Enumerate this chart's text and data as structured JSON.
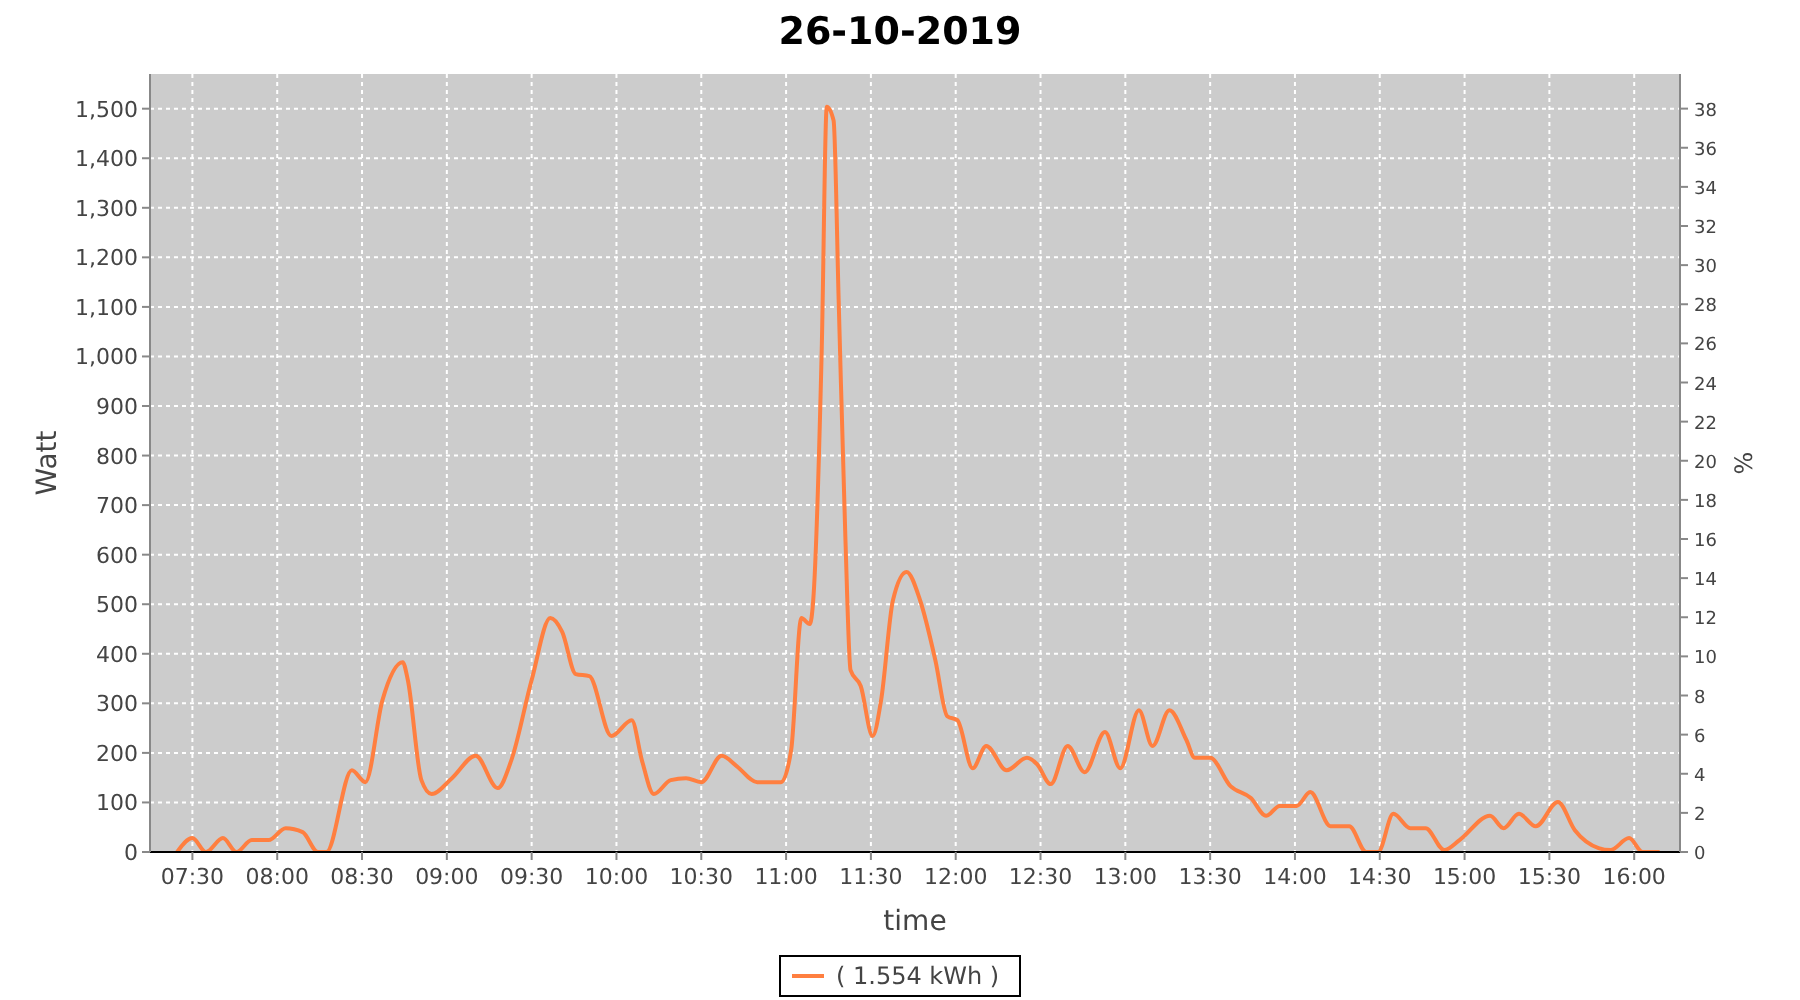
{
  "chart_data": {
    "type": "line",
    "title": "26-10-2019",
    "xlabel": "time",
    "ylabel": "Watt",
    "y2label": "%",
    "xlim": [
      7.25,
      16.27
    ],
    "xticks": [
      {
        "value": 7.5,
        "label": "07:30"
      },
      {
        "value": 8,
        "label": "08:00"
      },
      {
        "value": 8.5,
        "label": "08:30"
      },
      {
        "value": 9,
        "label": "09:00"
      },
      {
        "value": 9.5,
        "label": "09:30"
      },
      {
        "value": 10,
        "label": "10:00"
      },
      {
        "value": 10.5,
        "label": "10:30"
      },
      {
        "value": 11,
        "label": "11:00"
      },
      {
        "value": 11.5,
        "label": "11:30"
      },
      {
        "value": 12,
        "label": "12:00"
      },
      {
        "value": 12.5,
        "label": "12:30"
      },
      {
        "value": 13,
        "label": "13:00"
      },
      {
        "value": 13.5,
        "label": "13:30"
      },
      {
        "value": 14,
        "label": "14:00"
      },
      {
        "value": 14.5,
        "label": "14:30"
      },
      {
        "value": 15,
        "label": "15:00"
      },
      {
        "value": 15.5,
        "label": "15:30"
      },
      {
        "value": 16,
        "label": "16:00"
      }
    ],
    "ylim": [
      0,
      1570
    ],
    "yticks": [
      0,
      100,
      200,
      300,
      400,
      500,
      600,
      700,
      800,
      900,
      {
        "value": 1000,
        "label": "1,000"
      },
      {
        "value": 1100,
        "label": "1,100"
      },
      {
        "value": 1200,
        "label": "1,200"
      },
      {
        "value": 1300,
        "label": "1,300"
      },
      {
        "value": 1400,
        "label": "1,400"
      },
      {
        "value": 1500,
        "label": "1,500"
      }
    ],
    "y2lim": [
      0,
      39.77
    ],
    "y2ticks": [
      0,
      2,
      4,
      6,
      8,
      10,
      12,
      14,
      16,
      18,
      20,
      22,
      24,
      26,
      28,
      30,
      32,
      34,
      36,
      38
    ],
    "grid": true,
    "legend": "bottom",
    "marker": "none",
    "line_style": "solid",
    "series": [
      {
        "name": "( 1.554 kWh )",
        "color": "#ff7f40",
        "x": [
          7.41,
          7.5,
          7.58,
          7.68,
          7.76,
          7.85,
          7.95,
          8.05,
          8.15,
          8.24,
          8.29,
          8.44,
          8.52,
          8.62,
          8.74,
          8.77,
          8.85,
          8.91,
          9.03,
          9.17,
          9.3,
          9.38,
          9.5,
          9.61,
          9.68,
          9.76,
          9.84,
          9.97,
          10.09,
          10.15,
          10.22,
          10.32,
          10.41,
          10.5,
          10.62,
          10.71,
          10.83,
          10.97,
          11.03,
          11.09,
          11.14,
          11.16,
          11.21,
          11.24,
          11.28,
          11.31,
          11.35,
          11.38,
          11.44,
          11.51,
          11.56,
          11.63,
          11.71,
          11.79,
          11.88,
          11.95,
          12.01,
          12.1,
          12.18,
          12.3,
          12.42,
          12.48,
          12.56,
          12.66,
          12.76,
          12.88,
          12.97,
          13.08,
          13.16,
          13.26,
          13.36,
          13.41,
          13.5,
          13.62,
          13.74,
          13.83,
          13.91,
          14.01,
          14.09,
          14.21,
          14.32,
          14.42,
          14.49,
          14.58,
          14.68,
          14.77,
          14.88,
          14.97,
          15.15,
          15.23,
          15.32,
          15.42,
          15.55,
          15.65,
          15.79,
          15.86,
          15.97,
          16.05,
          16.15
        ],
        "values": [
          0,
          28,
          0,
          28,
          0,
          24,
          24,
          48,
          40,
          0,
          0,
          165,
          141,
          306,
          383,
          347,
          145,
          117,
          149,
          194,
          129,
          185,
          347,
          472,
          444,
          359,
          355,
          234,
          266,
          185,
          117,
          145,
          149,
          141,
          194,
          173,
          141,
          141,
          206,
          472,
          460,
          508,
          1012,
          1504,
          1476,
          1113,
          629,
          367,
          335,
          234,
          306,
          508,
          565,
          508,
          387,
          274,
          266,
          169,
          214,
          165,
          190,
          177,
          137,
          214,
          161,
          242,
          169,
          286,
          214,
          286,
          226,
          190,
          190,
          133,
          109,
          73,
          93,
          93,
          121,
          52,
          52,
          0,
          0,
          77,
          48,
          48,
          4,
          24,
          73,
          48,
          77,
          52,
          101,
          44,
          8,
          4,
          28,
          0,
          0
        ]
      }
    ]
  }
}
